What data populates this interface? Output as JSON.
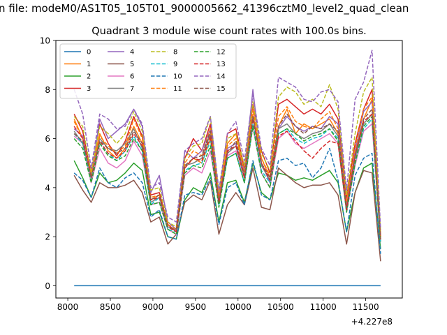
{
  "chart_data": {
    "type": "line",
    "suptitle": "n file: modeM0/AS1T05_105T01_9000005662_41396cztM0_level2_quad_clean",
    "title": "Quadrant 3 module wise count rates with 100.0s bins.",
    "xlabel": "",
    "ylabel": "",
    "x_offset_label": "+4.227e8",
    "x_offset": 422700000,
    "xlim": [
      7860,
      11930
    ],
    "ylim": [
      -0.5,
      10.0
    ],
    "xticks": [
      8000,
      8500,
      9000,
      9500,
      10000,
      10500,
      11000,
      11500
    ],
    "yticks": [
      0,
      2,
      4,
      6,
      8,
      10
    ],
    "grid": false,
    "legend": {
      "placement": "top-left",
      "columns": 4
    },
    "x": [
      8075,
      8175,
      8275,
      8375,
      8475,
      8575,
      8675,
      8775,
      8875,
      8975,
      9075,
      9175,
      9275,
      9375,
      9475,
      9575,
      9675,
      9775,
      9875,
      9975,
      10075,
      10175,
      10275,
      10375,
      10475,
      10575,
      10675,
      10775,
      10875,
      10975,
      11075,
      11175,
      11275,
      11375,
      11475,
      11575,
      11675
    ],
    "series": [
      {
        "name": "0",
        "color": "#1f77b4",
        "dash": "solid",
        "values": [
          0,
          0,
          0,
          0,
          0,
          0,
          0,
          0,
          0,
          0,
          0,
          0,
          0,
          0,
          0,
          0,
          0,
          0,
          0,
          0,
          0,
          0,
          0,
          0,
          0,
          0,
          0,
          0,
          0,
          0,
          0,
          0,
          0,
          0,
          0,
          0,
          0
        ]
      },
      {
        "name": "1",
        "color": "#ff7f0e",
        "dash": "solid",
        "values": [
          6.8,
          6.0,
          4.6,
          6.2,
          5.5,
          5.2,
          5.6,
          6.5,
          5.8,
          3.5,
          3.7,
          2.5,
          2.2,
          4.8,
          5.2,
          5.0,
          6.0,
          3.5,
          5.8,
          6.2,
          4.6,
          7.0,
          5.2,
          4.4,
          6.5,
          7.2,
          6.2,
          6.6,
          6.4,
          6.6,
          6.8,
          6.2,
          3.4,
          5.4,
          6.8,
          7.6,
          2.0
        ]
      },
      {
        "name": "2",
        "color": "#2ca02c",
        "dash": "solid",
        "values": [
          5.1,
          4.4,
          3.6,
          4.6,
          4.2,
          4.3,
          4.6,
          5.0,
          4.7,
          2.9,
          3.0,
          2.0,
          1.9,
          3.5,
          4.0,
          3.8,
          4.6,
          2.6,
          4.2,
          4.3,
          3.4,
          5.0,
          3.8,
          3.5,
          4.6,
          4.5,
          4.3,
          4.4,
          4.3,
          4.5,
          4.7,
          4.2,
          2.2,
          3.8,
          4.8,
          5.0,
          1.5
        ]
      },
      {
        "name": "3",
        "color": "#d62728",
        "dash": "solid",
        "values": [
          7.0,
          6.3,
          4.6,
          6.6,
          5.8,
          5.3,
          5.9,
          6.9,
          6.1,
          3.7,
          3.8,
          2.5,
          2.2,
          5.2,
          6.0,
          5.5,
          6.6,
          3.7,
          6.2,
          6.4,
          4.8,
          7.4,
          5.5,
          4.6,
          7.4,
          7.6,
          7.3,
          7.0,
          7.2,
          7.0,
          7.4,
          6.8,
          3.6,
          5.8,
          7.2,
          8.0,
          2.0
        ]
      },
      {
        "name": "4",
        "color": "#9467bd",
        "dash": "solid",
        "values": [
          6.4,
          6.1,
          4.4,
          6.8,
          6.0,
          6.3,
          6.6,
          7.2,
          6.5,
          3.8,
          4.5,
          2.6,
          2.3,
          5.5,
          5.2,
          5.5,
          6.4,
          3.6,
          5.6,
          5.8,
          4.6,
          8.0,
          5.0,
          4.2,
          6.4,
          6.9,
          6.5,
          6.3,
          6.5,
          6.4,
          6.9,
          6.6,
          3.2,
          5.5,
          7.1,
          7.5,
          1.8
        ]
      },
      {
        "name": "5",
        "color": "#8c564b",
        "dash": "solid",
        "values": [
          4.5,
          3.9,
          3.4,
          4.2,
          4.0,
          4.0,
          4.1,
          4.3,
          3.8,
          2.6,
          2.8,
          1.7,
          2.1,
          3.4,
          3.7,
          3.5,
          4.3,
          2.1,
          3.3,
          3.8,
          3.3,
          4.8,
          3.2,
          3.1,
          4.8,
          4.5,
          4.2,
          4.0,
          4.1,
          4.1,
          4.2,
          3.7,
          1.7,
          3.8,
          4.7,
          4.6,
          1.0
        ]
      },
      {
        "name": "6",
        "color": "#e377c2",
        "dash": "solid",
        "values": [
          6.1,
          5.8,
          4.2,
          5.6,
          5.0,
          4.8,
          5.1,
          5.9,
          5.3,
          3.3,
          3.4,
          2.3,
          2.1,
          4.5,
          4.8,
          4.6,
          5.5,
          3.3,
          5.3,
          5.5,
          4.2,
          6.5,
          4.6,
          4.0,
          6.0,
          6.3,
          5.8,
          5.6,
          5.8,
          6.0,
          6.2,
          5.8,
          3.0,
          4.9,
          6.3,
          6.6,
          1.8
        ]
      },
      {
        "name": "7",
        "color": "#7f7f7f",
        "dash": "solid",
        "values": [
          6.3,
          5.8,
          4.5,
          6.0,
          5.6,
          5.5,
          5.8,
          6.4,
          5.6,
          3.4,
          3.6,
          2.4,
          2.3,
          4.9,
          5.0,
          5.2,
          6.2,
          3.4,
          5.4,
          5.7,
          4.4,
          6.9,
          4.9,
          4.3,
          6.4,
          6.6,
          6.2,
          6.0,
          6.2,
          6.3,
          6.6,
          6.1,
          3.1,
          5.2,
          6.6,
          7.0,
          1.9
        ]
      },
      {
        "name": "8",
        "color": "#bcbd22",
        "dash": "dashed",
        "values": [
          6.9,
          6.5,
          4.6,
          6.5,
          6.2,
          5.8,
          6.2,
          7.1,
          6.3,
          3.9,
          4.0,
          2.6,
          2.4,
          5.2,
          5.7,
          5.8,
          6.9,
          3.8,
          6.0,
          6.2,
          4.9,
          7.5,
          5.4,
          4.7,
          7.7,
          8.1,
          7.9,
          7.4,
          7.6,
          7.3,
          8.2,
          7.2,
          3.7,
          6.2,
          7.9,
          8.5,
          2.2
        ]
      },
      {
        "name": "9",
        "color": "#17becf",
        "dash": "dashed",
        "values": [
          6.2,
          5.8,
          4.3,
          5.8,
          5.4,
          5.1,
          5.5,
          6.1,
          5.5,
          3.3,
          3.6,
          2.3,
          2.2,
          4.7,
          4.9,
          5.0,
          5.9,
          3.3,
          5.2,
          5.4,
          4.2,
          6.6,
          4.7,
          4.2,
          6.2,
          6.4,
          6.0,
          5.8,
          6.0,
          6.1,
          6.4,
          6.0,
          3.0,
          5.0,
          6.4,
          6.8,
          1.8
        ]
      },
      {
        "name": "10",
        "color": "#1f77b4",
        "dash": "dashed",
        "values": [
          4.6,
          4.3,
          3.6,
          4.8,
          4.2,
          4.0,
          4.4,
          4.6,
          4.2,
          2.8,
          3.1,
          2.0,
          1.9,
          3.7,
          3.8,
          3.7,
          4.4,
          2.5,
          4.0,
          4.2,
          3.3,
          5.1,
          3.7,
          3.5,
          5.1,
          5.2,
          4.9,
          5.0,
          4.4,
          4.8,
          5.6,
          4.3,
          2.2,
          4.5,
          5.2,
          5.4,
          1.3
        ]
      },
      {
        "name": "11",
        "color": "#ff7f0e",
        "dash": "dashed",
        "values": [
          6.7,
          6.0,
          4.5,
          6.1,
          5.7,
          5.4,
          5.7,
          6.8,
          6.0,
          3.6,
          3.7,
          2.5,
          2.3,
          5.0,
          5.5,
          5.3,
          6.4,
          3.6,
          5.7,
          6.0,
          4.6,
          7.2,
          5.2,
          4.5,
          6.9,
          7.3,
          6.7,
          6.5,
          6.4,
          6.8,
          7.1,
          6.4,
          3.4,
          5.6,
          7.2,
          7.7,
          2.0
        ]
      },
      {
        "name": "12",
        "color": "#2ca02c",
        "dash": "dashed",
        "values": [
          6.0,
          5.6,
          4.2,
          5.8,
          5.3,
          5.1,
          5.3,
          6.0,
          5.5,
          3.3,
          3.4,
          2.3,
          2.1,
          4.6,
          4.9,
          4.8,
          5.7,
          3.2,
          5.2,
          5.4,
          4.2,
          6.5,
          4.6,
          4.0,
          6.2,
          6.4,
          6.2,
          5.9,
          6.1,
          6.2,
          6.4,
          5.9,
          3.0,
          5.0,
          6.5,
          6.9,
          1.8
        ]
      },
      {
        "name": "13",
        "color": "#d62728",
        "dash": "dashed",
        "values": [
          6.5,
          6.0,
          4.4,
          5.9,
          5.4,
          5.2,
          5.5,
          6.2,
          5.7,
          3.5,
          3.6,
          2.4,
          2.2,
          4.8,
          5.2,
          5.1,
          6.1,
          3.4,
          5.5,
          5.7,
          4.4,
          6.8,
          5.0,
          4.3,
          6.1,
          6.3,
          5.9,
          5.5,
          5.2,
          5.6,
          5.9,
          5.8,
          3.1,
          5.3,
          6.7,
          7.0,
          1.9
        ]
      },
      {
        "name": "14",
        "color": "#9467bd",
        "dash": "dashed",
        "values": [
          8.0,
          7.0,
          4.8,
          7.0,
          6.8,
          6.4,
          6.5,
          7.2,
          6.6,
          4.0,
          4.2,
          2.8,
          2.6,
          5.5,
          5.8,
          6.0,
          6.9,
          3.9,
          6.2,
          6.7,
          5.1,
          7.8,
          5.6,
          4.9,
          8.5,
          8.3,
          8.1,
          7.6,
          7.5,
          7.9,
          8.0,
          7.5,
          3.9,
          7.6,
          8.3,
          9.6,
          2.3
        ]
      },
      {
        "name": "15",
        "color": "#8c564b",
        "dash": "dashed",
        "values": [
          6.2,
          5.9,
          4.4,
          5.9,
          5.6,
          5.4,
          5.6,
          6.3,
          5.8,
          3.5,
          3.7,
          2.4,
          2.3,
          4.9,
          5.2,
          5.3,
          6.3,
          3.4,
          5.4,
          5.9,
          4.5,
          6.9,
          5.0,
          4.4,
          6.5,
          7.0,
          6.5,
          6.2,
          6.5,
          6.4,
          6.6,
          6.3,
          3.2,
          5.3,
          6.8,
          7.2,
          1.9
        ]
      }
    ]
  }
}
